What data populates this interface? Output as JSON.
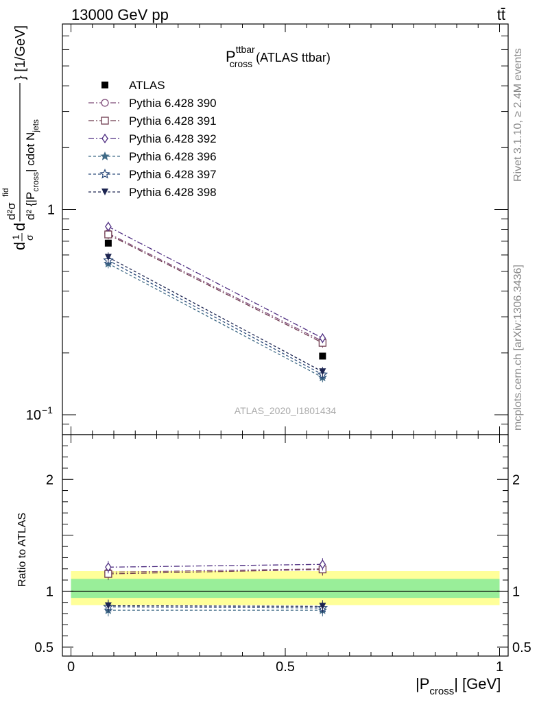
{
  "header": {
    "left": "13000 GeV pp",
    "right": "tt̄"
  },
  "side_labels": {
    "rivet": "Rivet 3.1.10, ≥ 2.4M events",
    "mcplots": "mcplots.cern.ch [arXiv:1306.3436]"
  },
  "watermark": "ATLAS_2020_I1801434",
  "chart_data": [
    {
      "type": "line",
      "title_main": "P",
      "title_sup": "ttbar",
      "title_sub": "cross",
      "title_rest": "(ATLAS ttbar)",
      "ylabel_parts": {
        "d1": "d",
        "frac_num": "1",
        "frac_den": "σ",
        "d2": "d",
        "num": "d²σ",
        "num_sup": "fid",
        "den_a": "d² {|P",
        "den_sub": "cross",
        "den_b": "| cdot N",
        "den_sub2": "jets",
        "unit": "} [1/GeV]"
      },
      "yscale": "log",
      "ylim": [
        0.08,
        8.0
      ],
      "xlim": [
        -0.02,
        1.02
      ],
      "ytick_labels": [
        {
          "value": 0.1,
          "base": "10",
          "exp": "−1"
        },
        {
          "value": 1,
          "base": "1",
          "exp": ""
        }
      ],
      "x": [
        0.087,
        0.587
      ],
      "data": {
        "name": "ATLAS",
        "values": [
          0.685,
          0.193
        ],
        "color": "#000000"
      },
      "series": [
        {
          "name": "Pythia 6.428 390",
          "values": [
            0.765,
            0.228
          ],
          "color": "#7e4a78",
          "marker": "circle-open",
          "dash": "8,3,2,3"
        },
        {
          "name": "Pythia 6.428 391",
          "values": [
            0.755,
            0.224
          ],
          "color": "#6e3a4e",
          "marker": "square-open",
          "dash": "8,3,2,3"
        },
        {
          "name": "Pythia 6.428 392",
          "values": [
            0.825,
            0.236
          ],
          "color": "#4c2b80",
          "marker": "diamond-open",
          "dash": "8,3,2,3"
        },
        {
          "name": "Pythia 6.428 396",
          "values": [
            0.545,
            0.152
          ],
          "color": "#3f6a86",
          "marker": "star-filled",
          "dash": "4,3"
        },
        {
          "name": "Pythia 6.428 397",
          "values": [
            0.565,
            0.157
          ],
          "color": "#2b4a7a",
          "marker": "star-open",
          "dash": "4,3"
        },
        {
          "name": "Pythia 6.428 398",
          "values": [
            0.585,
            0.162
          ],
          "color": "#1c2450",
          "marker": "triangle-down",
          "dash": "4,3"
        }
      ]
    },
    {
      "type": "line",
      "ylabel": "Ratio to ATLAS",
      "xlabel_main": "|P",
      "xlabel_sub": "cross",
      "xlabel_rest": "| [GeV]",
      "ylim": [
        0.42,
        2.4
      ],
      "ytick_labels": [
        "0.5",
        "1",
        "2"
      ],
      "ytick_values": [
        0.5,
        1,
        2
      ],
      "xtick_labels": [
        "0",
        "0.5",
        "1"
      ],
      "xtick_values": [
        0,
        0.5,
        1
      ],
      "band_yellow": [
        0.875,
        1.18
      ],
      "band_green": [
        0.94,
        1.11
      ],
      "series": [
        {
          "name": "Pythia 6.428 390",
          "values": [
            1.17,
            1.2
          ]
        },
        {
          "name": "Pythia 6.428 391",
          "values": [
            1.155,
            1.195
          ]
        },
        {
          "name": "Pythia 6.428 392",
          "values": [
            1.215,
            1.24
          ]
        },
        {
          "name": "Pythia 6.428 396",
          "values": [
            0.83,
            0.83
          ]
        },
        {
          "name": "Pythia 6.428 397",
          "values": [
            0.86,
            0.85
          ]
        },
        {
          "name": "Pythia 6.428 398",
          "values": [
            0.87,
            0.865
          ]
        }
      ]
    }
  ]
}
